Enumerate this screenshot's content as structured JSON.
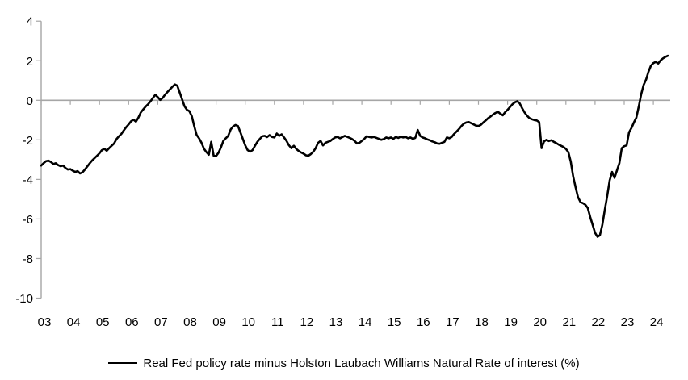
{
  "chart_data": {
    "type": "line",
    "title": "",
    "xlabel": "",
    "ylabel": "",
    "ylim": [
      -10,
      4
    ],
    "xlim": [
      2003.0,
      2024.6
    ],
    "grid": "zero-line-only",
    "legend_position": "bottom-center",
    "colors": {
      "line": "#000000",
      "axis": "#a6a6a6",
      "background": "#ffffff"
    },
    "y_ticks": [
      4,
      2,
      0,
      -2,
      -4,
      -6,
      -8,
      -10
    ],
    "y_tick_labels": [
      "4",
      "2",
      "0",
      "-2",
      "-4",
      "-6",
      "-8",
      "-10"
    ],
    "x_tick_years": [
      2003,
      2004,
      2005,
      2006,
      2007,
      2008,
      2009,
      2010,
      2011,
      2012,
      2013,
      2014,
      2015,
      2016,
      2017,
      2018,
      2019,
      2020,
      2021,
      2022,
      2023,
      2024
    ],
    "x_tick_labels": [
      "03",
      "04",
      "05",
      "06",
      "07",
      "08",
      "09",
      "10",
      "11",
      "12",
      "13",
      "14",
      "15",
      "16",
      "17",
      "18",
      "19",
      "20",
      "21",
      "22",
      "23",
      "24"
    ],
    "series": [
      {
        "name": "Real Fed policy rate minus Holston Laubach Williams Natural Rate of interest (%)",
        "color": "#000000",
        "x_start_year": 2003.0,
        "x_step_months": 1,
        "values": [
          -3.3,
          -3.18,
          -3.08,
          -3.05,
          -3.12,
          -3.22,
          -3.18,
          -3.28,
          -3.33,
          -3.3,
          -3.42,
          -3.5,
          -3.48,
          -3.56,
          -3.62,
          -3.58,
          -3.7,
          -3.64,
          -3.5,
          -3.34,
          -3.18,
          -3.04,
          -2.92,
          -2.8,
          -2.68,
          -2.52,
          -2.45,
          -2.55,
          -2.42,
          -2.3,
          -2.18,
          -1.96,
          -1.82,
          -1.7,
          -1.52,
          -1.36,
          -1.22,
          -1.06,
          -0.98,
          -1.08,
          -0.88,
          -0.62,
          -0.46,
          -0.32,
          -0.2,
          -0.05,
          0.12,
          0.28,
          0.16,
          0.02,
          0.12,
          0.28,
          0.42,
          0.55,
          0.68,
          0.8,
          0.74,
          0.4,
          0.05,
          -0.3,
          -0.48,
          -0.55,
          -0.8,
          -1.3,
          -1.75,
          -1.92,
          -2.15,
          -2.45,
          -2.62,
          -2.75,
          -2.1,
          -2.8,
          -2.82,
          -2.65,
          -2.38,
          -2.05,
          -1.92,
          -1.8,
          -1.48,
          -1.32,
          -1.25,
          -1.3,
          -1.62,
          -1.95,
          -2.28,
          -2.52,
          -2.6,
          -2.52,
          -2.3,
          -2.1,
          -1.95,
          -1.82,
          -1.8,
          -1.86,
          -1.76,
          -1.85,
          -1.88,
          -1.68,
          -1.8,
          -1.72,
          -1.88,
          -2.05,
          -2.28,
          -2.42,
          -2.3,
          -2.46,
          -2.56,
          -2.64,
          -2.7,
          -2.78,
          -2.8,
          -2.72,
          -2.6,
          -2.42,
          -2.15,
          -2.05,
          -2.28,
          -2.15,
          -2.1,
          -2.06,
          -1.96,
          -1.88,
          -1.85,
          -1.92,
          -1.86,
          -1.8,
          -1.85,
          -1.9,
          -1.96,
          -2.05,
          -2.18,
          -2.15,
          -2.05,
          -1.95,
          -1.82,
          -1.85,
          -1.88,
          -1.85,
          -1.9,
          -1.95,
          -2.0,
          -1.96,
          -1.88,
          -1.92,
          -1.88,
          -1.95,
          -1.85,
          -1.9,
          -1.84,
          -1.88,
          -1.85,
          -1.92,
          -1.88,
          -1.95,
          -1.9,
          -1.5,
          -1.8,
          -1.88,
          -1.92,
          -1.98,
          -2.02,
          -2.08,
          -2.12,
          -2.18,
          -2.2,
          -2.15,
          -2.1,
          -1.88,
          -1.92,
          -1.85,
          -1.7,
          -1.58,
          -1.45,
          -1.3,
          -1.18,
          -1.12,
          -1.1,
          -1.16,
          -1.22,
          -1.28,
          -1.3,
          -1.24,
          -1.12,
          -1.02,
          -0.9,
          -0.82,
          -0.72,
          -0.64,
          -0.58,
          -0.68,
          -0.76,
          -0.6,
          -0.48,
          -0.34,
          -0.2,
          -0.1,
          -0.05,
          -0.16,
          -0.4,
          -0.62,
          -0.78,
          -0.9,
          -0.96,
          -1.0,
          -1.02,
          -1.1,
          -2.42,
          -2.08,
          -2.0,
          -2.06,
          -2.02,
          -2.1,
          -2.16,
          -2.24,
          -2.3,
          -2.36,
          -2.46,
          -2.62,
          -3.1,
          -3.85,
          -4.4,
          -4.9,
          -5.15,
          -5.2,
          -5.28,
          -5.45,
          -5.9,
          -6.3,
          -6.7,
          -6.9,
          -6.82,
          -6.3,
          -5.55,
          -4.85,
          -4.05,
          -3.62,
          -3.92,
          -3.55,
          -3.18,
          -2.42,
          -2.32,
          -2.28,
          -1.62,
          -1.4,
          -1.12,
          -0.88,
          -0.3,
          0.32,
          0.78,
          1.05,
          1.45,
          1.75,
          1.88,
          1.94,
          1.86,
          2.02,
          2.12,
          2.2,
          2.25
        ]
      }
    ]
  },
  "legend": {
    "label": "Real Fed policy rate minus Holston Laubach Williams Natural Rate of interest (%)"
  }
}
